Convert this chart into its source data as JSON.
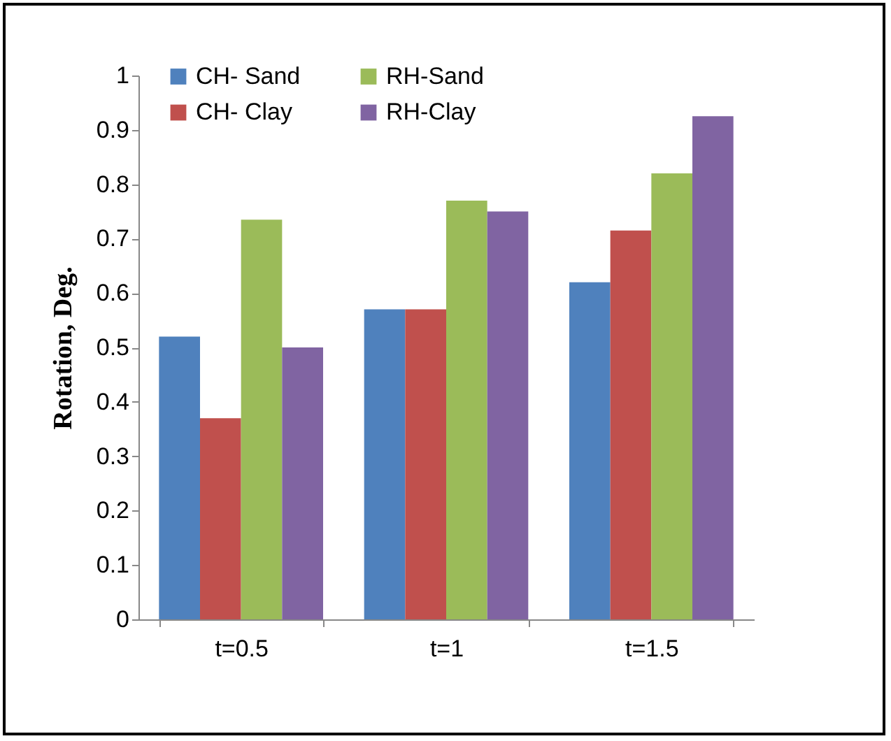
{
  "chart_data": {
    "type": "bar",
    "ylabel": "Rotation, Deg.",
    "categories": [
      "t=0.5",
      "t=1",
      "t=1.5"
    ],
    "series": [
      {
        "name": "CH- Sand",
        "color": "#4f81bd",
        "values": [
          0.52,
          0.57,
          0.62
        ]
      },
      {
        "name": "CH- Clay",
        "color": "#c0504d",
        "values": [
          0.37,
          0.57,
          0.715
        ]
      },
      {
        "name": "RH-Sand",
        "color": "#9bbb59",
        "values": [
          0.735,
          0.77,
          0.82
        ]
      },
      {
        "name": "RH-Clay",
        "color": "#8064a2",
        "values": [
          0.5,
          0.75,
          0.925
        ]
      }
    ],
    "ylim": [
      0,
      1
    ],
    "yticks": [
      0,
      0.1,
      0.2,
      0.3,
      0.4,
      0.5,
      0.6,
      0.7,
      0.8,
      0.9,
      1
    ],
    "grid": false,
    "legend": "top"
  }
}
